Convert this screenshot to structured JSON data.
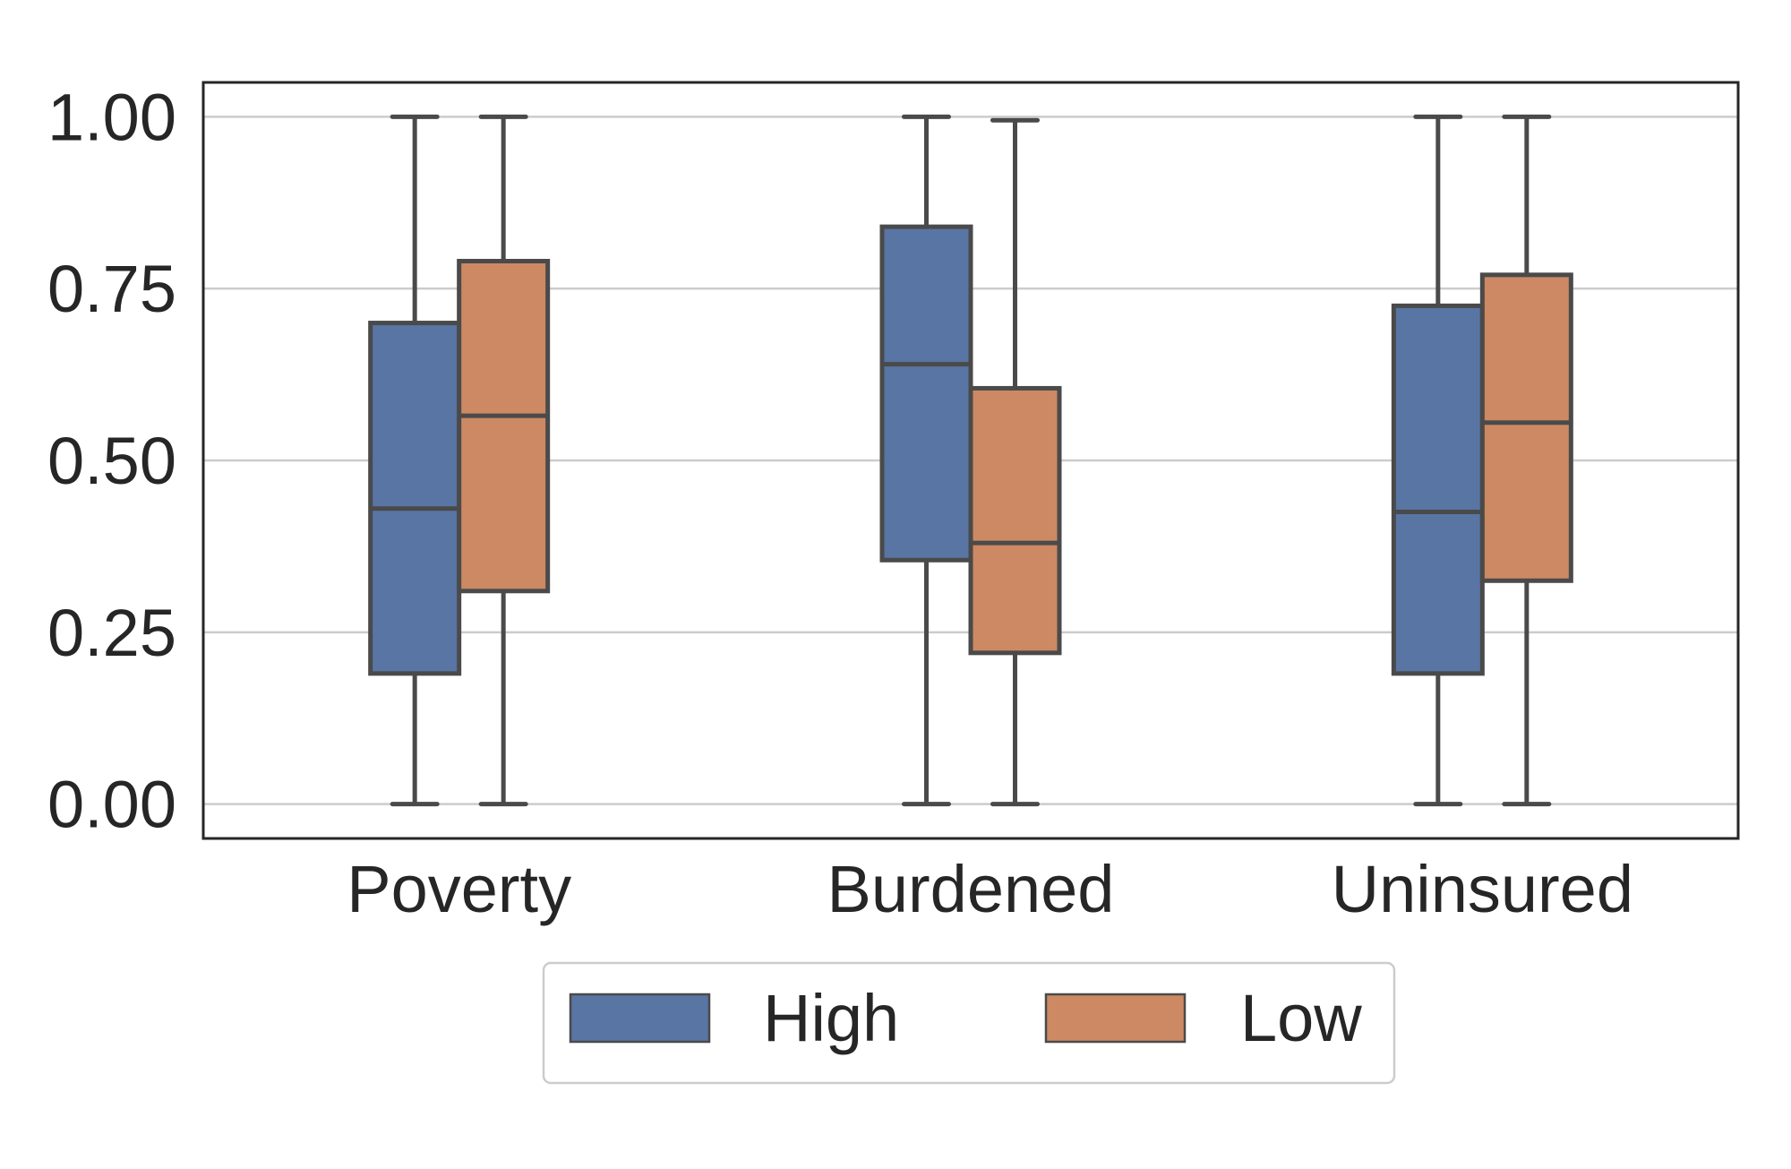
{
  "chart_data": {
    "type": "box",
    "title": "",
    "xlabel": "",
    "ylabel": "",
    "categories": [
      "Poverty",
      "Burdened",
      "Uninsured"
    ],
    "ylim": [
      -0.05,
      1.05
    ],
    "yticks": [
      "0.00",
      "0.25",
      "0.50",
      "0.75",
      "1.00"
    ],
    "ytick_values": [
      0.0,
      0.25,
      0.5,
      0.75,
      1.0
    ],
    "grid": "horizontal",
    "legend_position": "bottom-center",
    "series": [
      {
        "name": "High",
        "color": "#5875a4",
        "boxes": [
          {
            "whisker_low": 0.0,
            "q1": 0.19,
            "median": 0.43,
            "q3": 0.7,
            "whisker_high": 1.0
          },
          {
            "whisker_low": 0.0,
            "q1": 0.355,
            "median": 0.64,
            "q3": 0.84,
            "whisker_high": 1.0
          },
          {
            "whisker_low": 0.0,
            "q1": 0.19,
            "median": 0.425,
            "q3": 0.725,
            "whisker_high": 1.0
          }
        ]
      },
      {
        "name": "Low",
        "color": "#cc8963",
        "boxes": [
          {
            "whisker_low": 0.0,
            "q1": 0.31,
            "median": 0.565,
            "q3": 0.79,
            "whisker_high": 1.0
          },
          {
            "whisker_low": 0.0,
            "q1": 0.22,
            "median": 0.38,
            "q3": 0.605,
            "whisker_high": 0.995
          },
          {
            "whisker_low": 0.0,
            "q1": 0.325,
            "median": 0.555,
            "q3": 0.77,
            "whisker_high": 1.0
          }
        ]
      }
    ],
    "colors": {
      "axes": "#262626",
      "box_edge": "#4a4a4a",
      "grid": "#cccccc"
    }
  }
}
